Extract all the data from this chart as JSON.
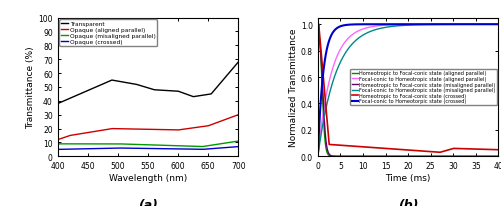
{
  "plot_a": {
    "xlabel": "Wavelength (nm)",
    "ylabel": "Transmittance (%)",
    "xlim": [
      400,
      700
    ],
    "ylim": [
      0,
      100
    ],
    "xticks": [
      400,
      450,
      500,
      550,
      600,
      650,
      700
    ],
    "yticks": [
      0,
      10,
      20,
      30,
      40,
      50,
      60,
      70,
      80,
      90,
      100
    ],
    "label_bottom": "(a)",
    "legend": [
      {
        "label": "Transparent",
        "color": "#000000"
      },
      {
        "label": "Opaque (aligned parallel)",
        "color": "#cc0000"
      },
      {
        "label": "Opaque (misaligned parallel)",
        "color": "#009900"
      },
      {
        "label": "Opaque (crossed)",
        "color": "#0000cc"
      }
    ]
  },
  "plot_b": {
    "xlabel": "Time (ms)",
    "ylabel": "Normalized Transmittance",
    "xlim": [
      0,
      40
    ],
    "ylim": [
      0,
      1.05
    ],
    "xticks": [
      0,
      5,
      10,
      15,
      20,
      25,
      30,
      35,
      40
    ],
    "yticks": [
      0.0,
      0.2,
      0.4,
      0.6,
      0.8,
      1.0
    ],
    "label_bottom": "(b)",
    "legend": [
      {
        "label": "Homeotropic to Focal-conic state (aligned parallel)",
        "color": "#008800"
      },
      {
        "label": "Focal-conic to Homeotropic state (aligned parallel)",
        "color": "#ff66ff"
      },
      {
        "label": "Homeotropic to Focal-conic state (misaligned parallel)",
        "color": "#660066"
      },
      {
        "label": "Focal-conic to Homeotropic state (misaligned parallel)",
        "color": "#008888"
      },
      {
        "label": "Homeotropic to Focal-conic state (crossed)",
        "color": "#cc0000"
      },
      {
        "label": "Focal-conic to Homeotorpic state (crossed)",
        "color": "#0000cc"
      }
    ]
  }
}
